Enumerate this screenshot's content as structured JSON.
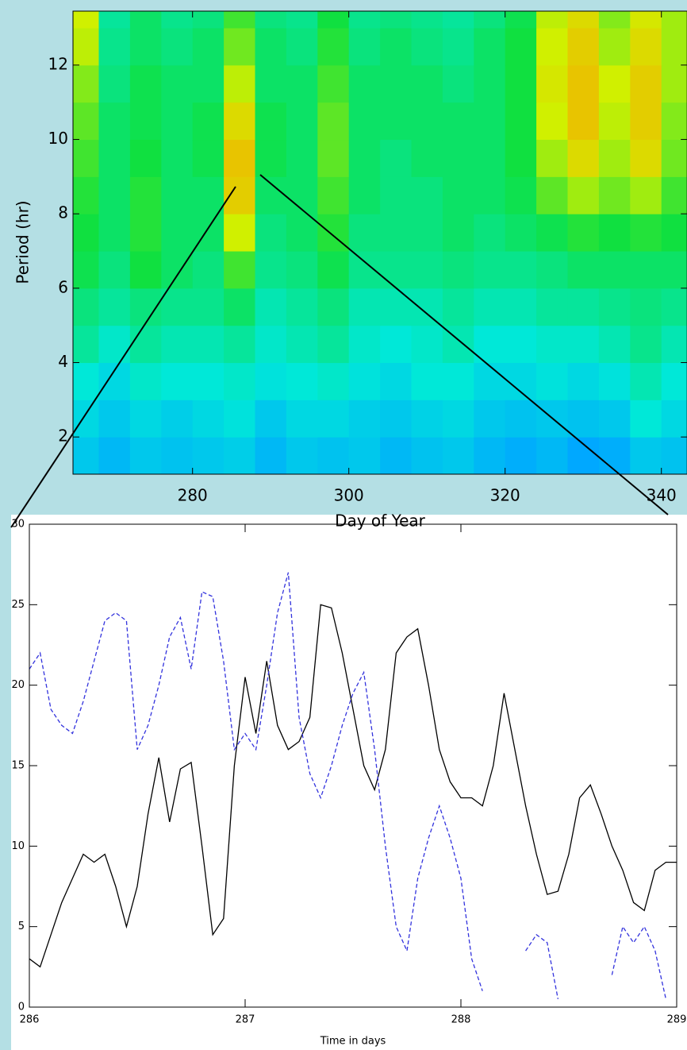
{
  "chart_data": [
    {
      "type": "heatmap",
      "xlabel": "Day of Year",
      "ylabel": "Period (hr)",
      "x_bins": [
        264.7,
        268,
        272,
        276,
        280,
        284,
        288,
        292,
        296,
        300,
        304,
        308,
        312,
        316,
        320,
        324,
        328,
        332,
        336,
        340,
        343.3
      ],
      "y_bins": [
        1,
        2,
        3,
        4,
        5,
        6,
        7,
        8,
        9,
        10,
        11,
        12,
        13,
        13.45
      ],
      "z": [
        [
          0.3,
          0.25,
          0.3,
          0.28,
          0.3,
          0.32,
          0.25,
          0.3,
          0.28,
          0.3,
          0.25,
          0.28,
          0.3,
          0.25,
          0.22,
          0.25,
          0.2,
          0.22,
          0.3,
          0.28
        ],
        [
          0.35,
          0.3,
          0.35,
          0.32,
          0.35,
          0.38,
          0.3,
          0.35,
          0.35,
          0.32,
          0.3,
          0.33,
          0.35,
          0.3,
          0.28,
          0.3,
          0.28,
          0.3,
          0.4,
          0.35
        ],
        [
          0.4,
          0.35,
          0.42,
          0.4,
          0.4,
          0.42,
          0.38,
          0.4,
          0.42,
          0.38,
          0.35,
          0.4,
          0.4,
          0.35,
          0.35,
          0.38,
          0.35,
          0.38,
          0.45,
          0.4
        ],
        [
          0.48,
          0.42,
          0.48,
          0.45,
          0.45,
          0.48,
          0.42,
          0.45,
          0.48,
          0.42,
          0.4,
          0.42,
          0.45,
          0.4,
          0.4,
          0.42,
          0.42,
          0.45,
          0.5,
          0.45
        ],
        [
          0.52,
          0.48,
          0.52,
          0.5,
          0.5,
          0.55,
          0.45,
          0.48,
          0.52,
          0.45,
          0.45,
          0.45,
          0.48,
          0.45,
          0.45,
          0.48,
          0.48,
          0.5,
          0.52,
          0.5
        ],
        [
          0.58,
          0.52,
          0.6,
          0.55,
          0.52,
          0.65,
          0.5,
          0.52,
          0.58,
          0.5,
          0.5,
          0.5,
          0.52,
          0.5,
          0.5,
          0.52,
          0.55,
          0.55,
          0.55,
          0.55
        ],
        [
          0.6,
          0.55,
          0.62,
          0.55,
          0.55,
          0.8,
          0.52,
          0.55,
          0.62,
          0.52,
          0.52,
          0.52,
          0.55,
          0.52,
          0.55,
          0.58,
          0.62,
          0.6,
          0.62,
          0.6
        ],
        [
          0.62,
          0.55,
          0.62,
          0.55,
          0.55,
          0.88,
          0.55,
          0.55,
          0.65,
          0.55,
          0.52,
          0.52,
          0.55,
          0.55,
          0.58,
          0.68,
          0.75,
          0.7,
          0.75,
          0.65
        ],
        [
          0.65,
          0.55,
          0.6,
          0.55,
          0.58,
          0.9,
          0.58,
          0.55,
          0.68,
          0.55,
          0.52,
          0.55,
          0.55,
          0.55,
          0.6,
          0.75,
          0.85,
          0.75,
          0.85,
          0.7
        ],
        [
          0.68,
          0.55,
          0.58,
          0.55,
          0.58,
          0.85,
          0.58,
          0.55,
          0.68,
          0.55,
          0.55,
          0.55,
          0.55,
          0.55,
          0.6,
          0.8,
          0.9,
          0.78,
          0.88,
          0.72
        ],
        [
          0.72,
          0.52,
          0.58,
          0.55,
          0.55,
          0.78,
          0.55,
          0.55,
          0.65,
          0.55,
          0.55,
          0.55,
          0.52,
          0.55,
          0.6,
          0.82,
          0.9,
          0.8,
          0.88,
          0.75
        ],
        [
          0.78,
          0.5,
          0.55,
          0.52,
          0.55,
          0.7,
          0.55,
          0.52,
          0.62,
          0.52,
          0.55,
          0.52,
          0.5,
          0.55,
          0.6,
          0.8,
          0.88,
          0.75,
          0.85,
          0.75
        ],
        [
          0.8,
          0.48,
          0.55,
          0.5,
          0.52,
          0.65,
          0.52,
          0.5,
          0.6,
          0.5,
          0.52,
          0.5,
          0.48,
          0.52,
          0.58,
          0.78,
          0.85,
          0.72,
          0.82,
          0.75
        ]
      ],
      "zlim": [
        0,
        1
      ],
      "colormap": [
        "#0018c0",
        "#00a8ff",
        "#00e8d8",
        "#10e040",
        "#d0f000",
        "#ff9800"
      ],
      "xlim": [
        264.7,
        343.3
      ],
      "ylim": [
        1,
        13.45
      ],
      "xticks": [
        280,
        300,
        320,
        340
      ],
      "yticks": [
        2,
        4,
        6,
        8,
        10,
        12
      ]
    },
    {
      "type": "line",
      "xlabel": "Time in days",
      "x": [
        286.0,
        286.05,
        286.1,
        286.15,
        286.2,
        286.25,
        286.3,
        286.35,
        286.4,
        286.45,
        286.5,
        286.55,
        286.6,
        286.65,
        286.7,
        286.75,
        286.8,
        286.85,
        286.9,
        286.95,
        287.0,
        287.05,
        287.1,
        287.15,
        287.2,
        287.25,
        287.3,
        287.35,
        287.4,
        287.45,
        287.5,
        287.55,
        287.6,
        287.65,
        287.7,
        287.75,
        287.8,
        287.85,
        287.9,
        287.95,
        288.0,
        288.05,
        288.1,
        288.15,
        288.2,
        288.25,
        288.3,
        288.35,
        288.4,
        288.45,
        288.5,
        288.55,
        288.6,
        288.65,
        288.7,
        288.75,
        288.8,
        288.85,
        288.9,
        288.95,
        289.0
      ],
      "series": [
        {
          "color": "#000000",
          "linestyle": "solid",
          "values": [
            3.0,
            2.5,
            4.5,
            6.5,
            8.0,
            9.5,
            9.0,
            9.5,
            7.5,
            5.0,
            7.5,
            12.0,
            15.5,
            11.5,
            14.8,
            15.2,
            10.0,
            4.5,
            5.5,
            15.0,
            20.5,
            17.0,
            21.5,
            17.5,
            16.0,
            16.5,
            18.0,
            25.0,
            24.8,
            22.0,
            18.5,
            15.0,
            13.5,
            16.0,
            22.0,
            23.0,
            23.5,
            20.0,
            16.0,
            14.0,
            13.0,
            13.0,
            12.5,
            15.0,
            19.5,
            16.0,
            12.5,
            9.5,
            7.0,
            7.2,
            9.5,
            13.0,
            13.8,
            12.0,
            10.0,
            8.5,
            6.5,
            6.0,
            8.5,
            9.0,
            9.0
          ]
        },
        {
          "color": "#3333dd",
          "linestyle": "dashed",
          "values": [
            21.0,
            22.0,
            18.5,
            17.5,
            17.0,
            19.0,
            21.5,
            24.0,
            24.5,
            24.0,
            16.0,
            17.5,
            20.0,
            23.0,
            24.2,
            21.0,
            25.8,
            25.5,
            21.5,
            16.0,
            17.0,
            16.0,
            20.0,
            24.5,
            27.0,
            18.0,
            14.5,
            13.0,
            15.0,
            17.5,
            19.5,
            20.8,
            16.0,
            10.0,
            5.0,
            3.5,
            8.0,
            10.5,
            12.5,
            10.5,
            8.0,
            3.0,
            1.0,
            null,
            null,
            null,
            3.5,
            4.5,
            4.0,
            0.5,
            null,
            null,
            null,
            null,
            2.0,
            5.0,
            4.0,
            5.0,
            3.5,
            0.5,
            null
          ]
        }
      ],
      "xlim": [
        286,
        289
      ],
      "ylim": [
        0,
        30
      ],
      "xticks": [
        286,
        287,
        288,
        289
      ],
      "yticks": [
        0,
        5,
        10,
        15,
        20,
        25,
        30
      ]
    }
  ]
}
